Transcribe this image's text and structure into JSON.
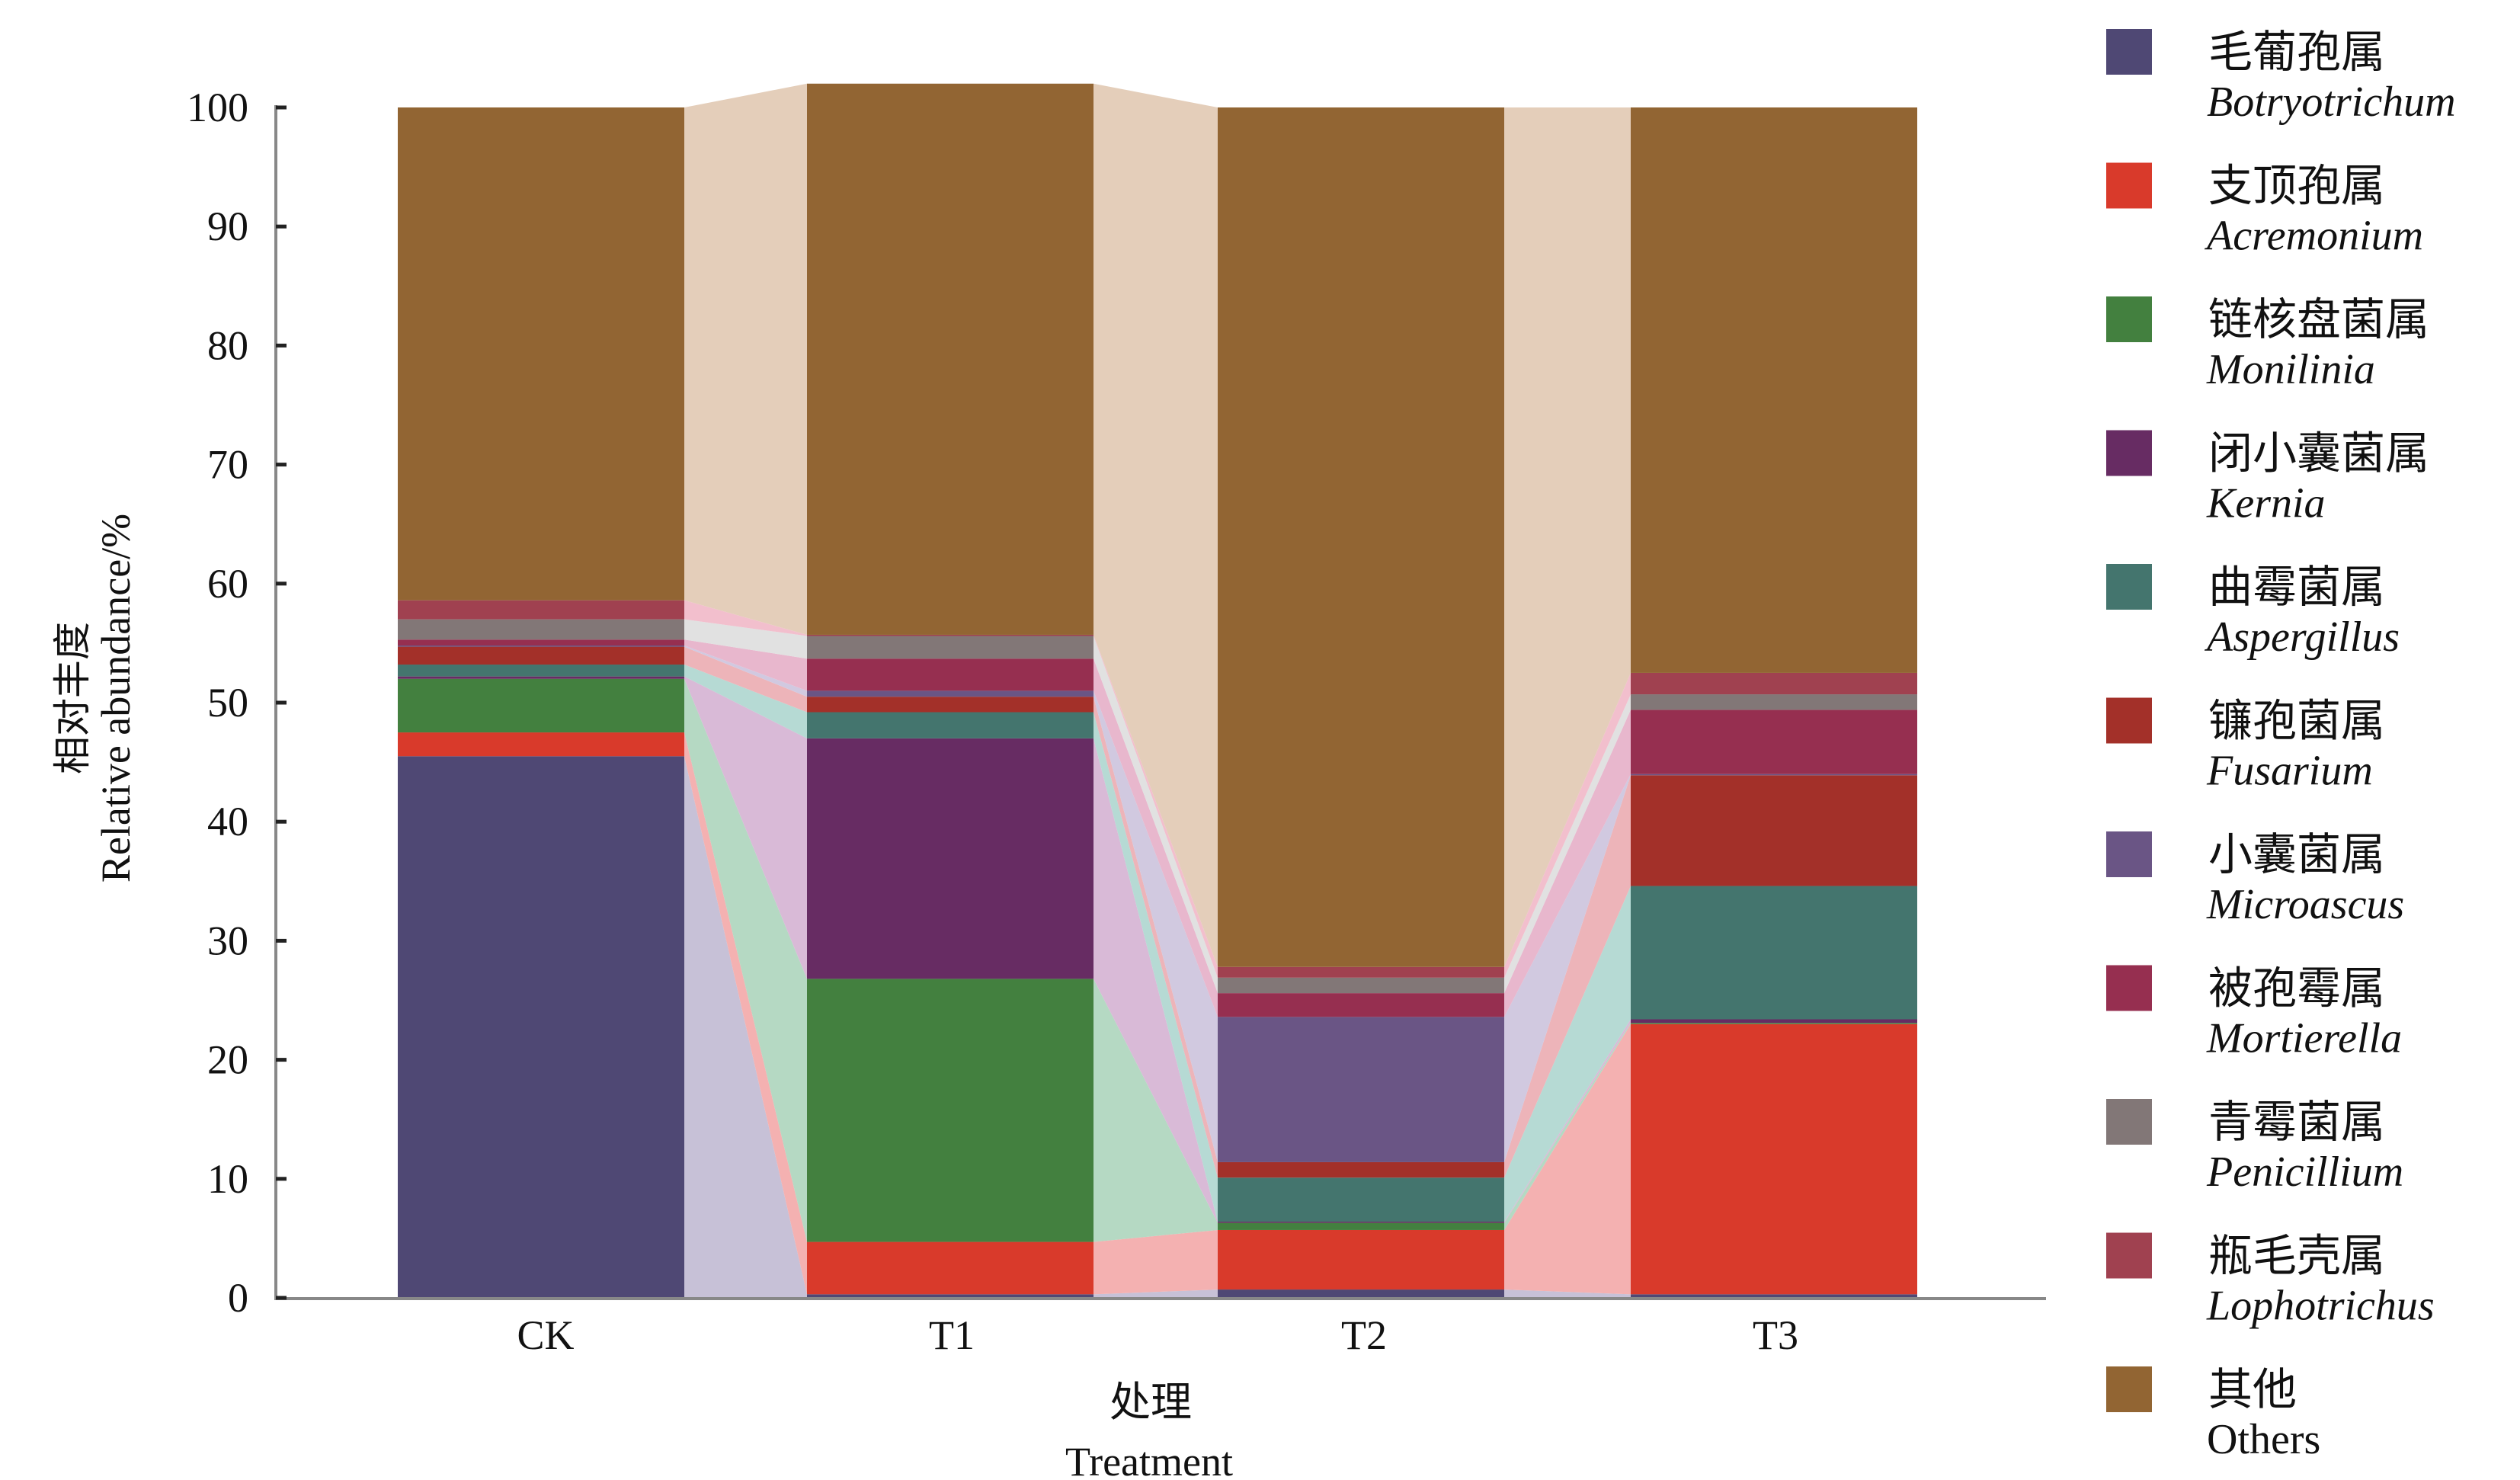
{
  "chart_data": {
    "type": "bar",
    "subtype": "stacked-percent-with-flow-bands",
    "title": "",
    "xlabel_cn": "处理",
    "xlabel": "Treatment",
    "ylabel_cn": "相对丰度",
    "ylabel": "Relative abundance/%",
    "ylim": [
      0,
      100
    ],
    "yticks": [
      "0",
      "10",
      "20",
      "30",
      "40",
      "50",
      "60",
      "70",
      "80",
      "90",
      "100"
    ],
    "categories": [
      "CK",
      "T1",
      "T2",
      "T3"
    ],
    "legend_position": "right",
    "series": [
      {
        "name_cn": "毛葡孢属",
        "name": "Botryotrichum",
        "italic": true,
        "color": "#4f4874",
        "flow_color": "#bdb6d0",
        "values": [
          45.5,
          0.3,
          0.7,
          0.3
        ]
      },
      {
        "name_cn": "支顶孢属",
        "name": "Acremonium",
        "italic": true,
        "color": "#d93a2b",
        "flow_color": "#f2a3a3",
        "values": [
          2.0,
          4.4,
          5.0,
          22.7
        ]
      },
      {
        "name_cn": "链核盘菌属",
        "name": "Monilinia",
        "italic": true,
        "color": "#43803f",
        "flow_color": "#a8d2b8",
        "values": [
          4.5,
          22.1,
          0.6,
          0.1
        ]
      },
      {
        "name_cn": "闭小囊菌属",
        "name": "Kernia",
        "italic": true,
        "color": "#672c63",
        "flow_color": "#d2aed0",
        "values": [
          0.2,
          20.2,
          0.1,
          0.3
        ]
      },
      {
        "name_cn": "曲霉菌属",
        "name": "Aspergillus",
        "italic": true,
        "color": "#44756e",
        "flow_color": "#a9d4cc",
        "values": [
          1.0,
          2.2,
          3.7,
          11.2
        ]
      },
      {
        "name_cn": "镰孢菌属",
        "name": "Fusarium",
        "italic": true,
        "color": "#a33029",
        "flow_color": "#eaa7ad",
        "values": [
          1.5,
          1.3,
          1.3,
          9.3
        ]
      },
      {
        "name_cn": "小囊菌属",
        "name": "Microascus",
        "italic": true,
        "color": "#6a5585",
        "flow_color": "#c9bfda",
        "values": [
          0.1,
          0.5,
          12.2,
          0.1
        ]
      },
      {
        "name_cn": "被孢霉属",
        "name": "Mortierella",
        "italic": true,
        "color": "#962f50",
        "flow_color": "#e4aac4",
        "values": [
          0.5,
          2.7,
          2.0,
          5.4
        ]
      },
      {
        "name_cn": "青霉菌属",
        "name": "Penicillium",
        "italic": true,
        "color": "#827777",
        "flow_color": "#dcdcdc",
        "values": [
          1.7,
          1.9,
          1.3,
          1.3
        ]
      },
      {
        "name_cn": "瓶毛壳属",
        "name": "Lophotrichus",
        "italic": true,
        "color": "#a04150",
        "flow_color": "#f0b4c4",
        "values": [
          1.6,
          0.1,
          0.9,
          1.8
        ]
      },
      {
        "name_cn": "其他",
        "name": "Others",
        "italic": false,
        "color": "#926533",
        "flow_color": "#dfc6ae",
        "values": [
          41.4,
          46.3,
          72.2,
          47.5
        ]
      }
    ]
  }
}
